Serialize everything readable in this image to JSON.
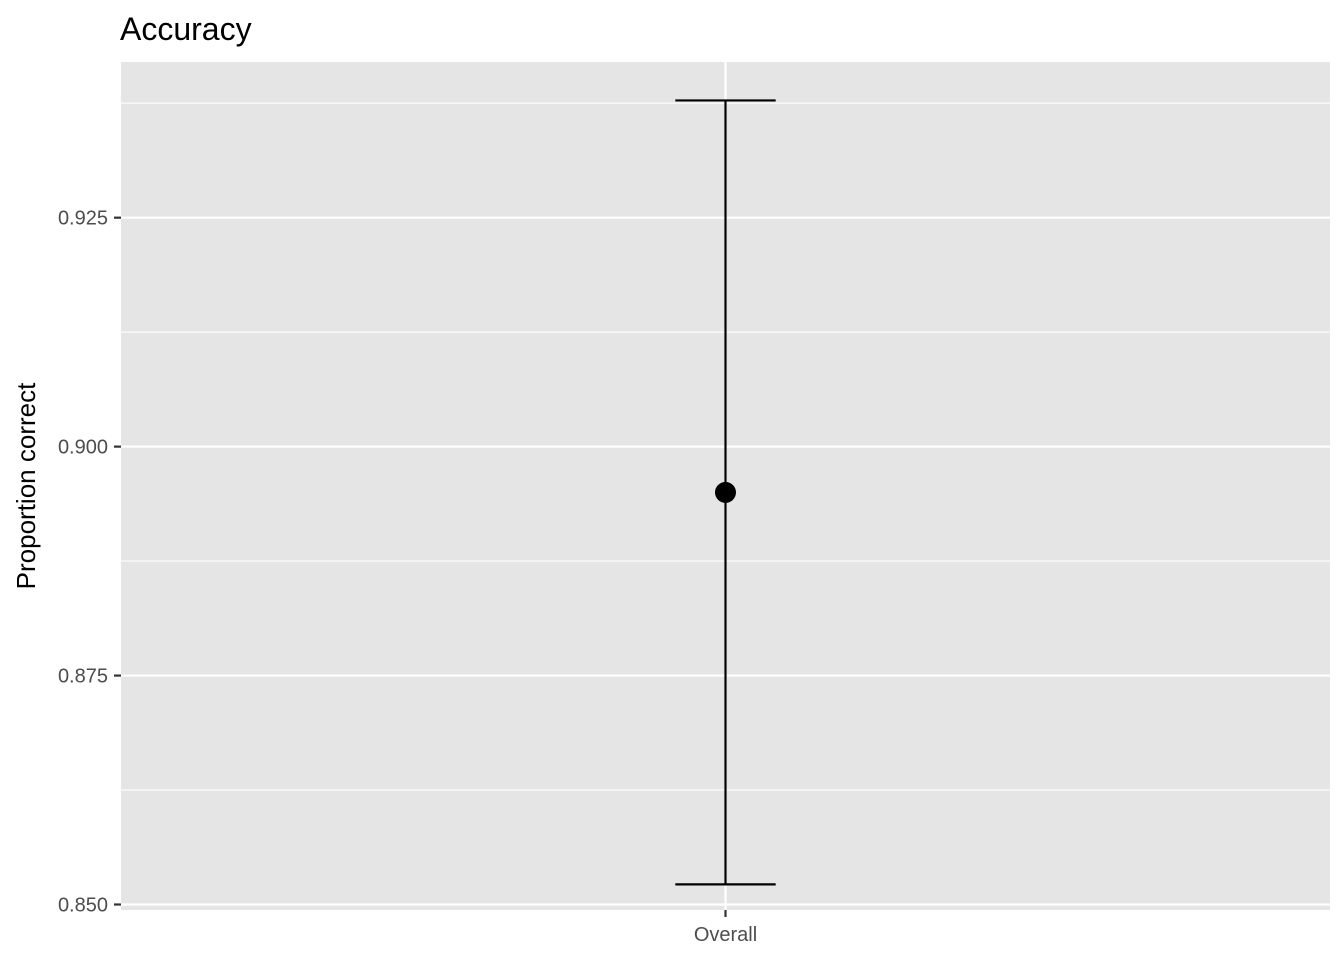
{
  "chart_data": {
    "type": "errorbar",
    "title": "Accuracy",
    "xlabel": "",
    "ylabel": "Proportion correct",
    "categories": [
      "Overall"
    ],
    "series": [
      {
        "values": [
          0.895
        ],
        "lower": [
          0.8522
        ],
        "upper": [
          0.9378
        ]
      }
    ],
    "yticks": [
      0.85,
      0.875,
      0.9,
      0.925
    ],
    "ytick_labels": [
      "0.850",
      "0.875",
      "0.900",
      "0.925"
    ],
    "ylim": [
      0.8494,
      0.942
    ],
    "grid": true,
    "legend": "none",
    "colors": {
      "panel_background": "#e5e5e5",
      "grid_line": "#ffffff",
      "mark": "#000000",
      "tick_label": "#4d4d4d",
      "tick_mark": "#333333"
    }
  }
}
